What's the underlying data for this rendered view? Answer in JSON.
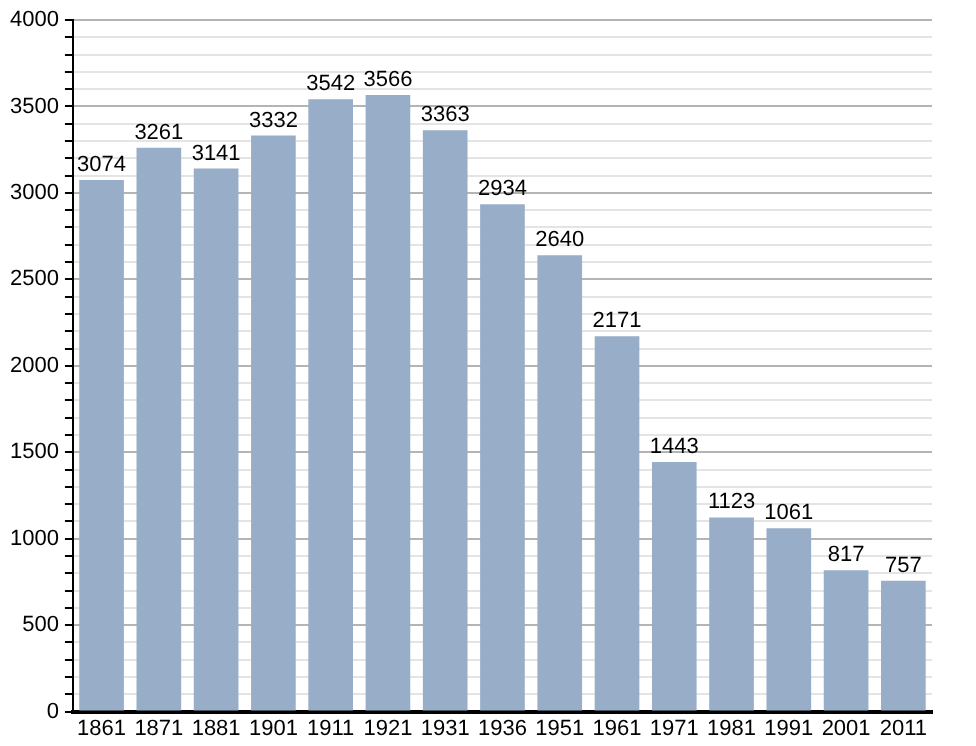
{
  "chart_data": {
    "type": "bar",
    "categories": [
      "1861",
      "1871",
      "1881",
      "1901",
      "1911",
      "1921",
      "1931",
      "1936",
      "1951",
      "1961",
      "1971",
      "1981",
      "1991",
      "2001",
      "2011"
    ],
    "values": [
      3074,
      3261,
      3141,
      3332,
      3542,
      3566,
      3363,
      2934,
      2640,
      2171,
      1443,
      1123,
      1061,
      817,
      757
    ],
    "color": "#98aec8",
    "data_labels": true,
    "grid": "y",
    "legend": false,
    "ylim": [
      0,
      4000
    ],
    "yticks": [
      0,
      {
        "value": 100,
        "label": null
      },
      {
        "value": 200,
        "label": null
      },
      {
        "value": 300,
        "label": null
      },
      {
        "value": 400,
        "label": null
      },
      500,
      {
        "value": 600,
        "label": null
      },
      {
        "value": 700,
        "label": null
      },
      {
        "value": 800,
        "label": null
      },
      {
        "value": 900,
        "label": null
      },
      1000,
      {
        "value": 1100,
        "label": null
      },
      {
        "value": 1200,
        "label": null
      },
      {
        "value": 1300,
        "label": null
      },
      {
        "value": 1400,
        "label": null
      },
      1500,
      {
        "value": 1600,
        "label": null
      },
      {
        "value": 1700,
        "label": null
      },
      {
        "value": 1800,
        "label": null
      },
      {
        "value": 1900,
        "label": null
      },
      2000,
      {
        "value": 2100,
        "label": null
      },
      {
        "value": 2200,
        "label": null
      },
      {
        "value": 2300,
        "label": null
      },
      {
        "value": 2400,
        "label": null
      },
      2500,
      {
        "value": 2600,
        "label": null
      },
      {
        "value": 2700,
        "label": null
      },
      {
        "value": 2800,
        "label": null
      },
      {
        "value": 2900,
        "label": null
      },
      3000,
      {
        "value": 3100,
        "label": null
      },
      {
        "value": 3200,
        "label": null
      },
      {
        "value": 3300,
        "label": null
      },
      {
        "value": 3400,
        "label": null
      },
      3500,
      {
        "value": 3600,
        "label": null
      },
      {
        "value": 3700,
        "label": null
      },
      {
        "value": 3800,
        "label": null
      },
      {
        "value": 3900,
        "label": null
      },
      4000
    ]
  }
}
